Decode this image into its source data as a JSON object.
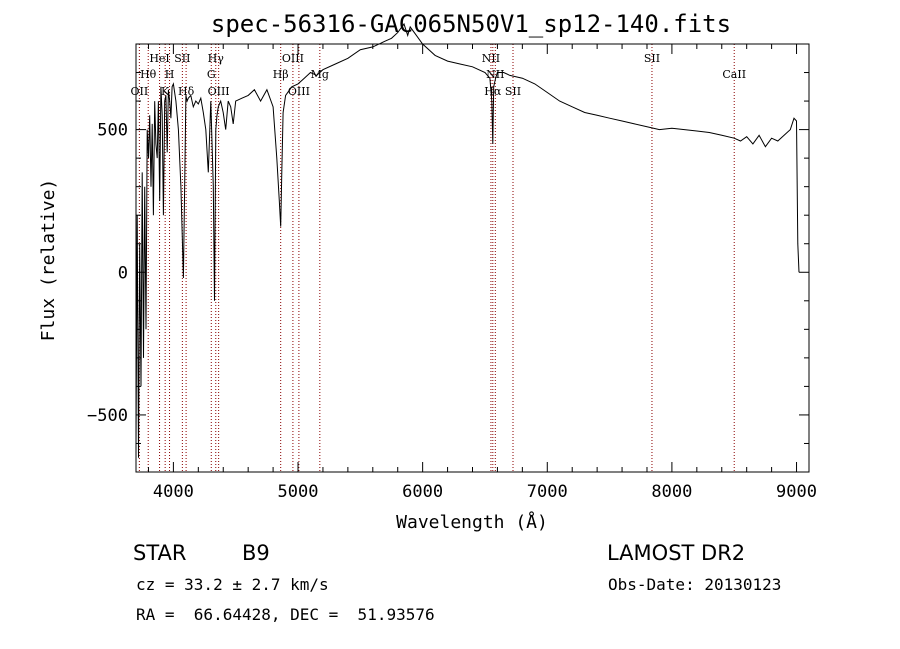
{
  "chart_data": {
    "type": "line",
    "title": "spec-56316-GAC065N50V1_sp12-140.fits",
    "xlabel": "Wavelength (Å)",
    "ylabel": "Flux (relative)",
    "xlim": [
      3700,
      9100
    ],
    "ylim": [
      -700,
      800
    ],
    "xticks": [
      4000,
      5000,
      6000,
      7000,
      8000,
      9000
    ],
    "yticks": [
      -500,
      0,
      500
    ],
    "grid": false,
    "line_color": "#000000",
    "marker_color": "#8b0000",
    "series": [
      {
        "x": [
          3700,
          3710,
          3720,
          3730,
          3740,
          3750,
          3760,
          3770,
          3780,
          3790,
          3800,
          3810,
          3820,
          3830,
          3840,
          3850,
          3860,
          3870,
          3880,
          3890,
          3900,
          3910,
          3920,
          3930,
          3940,
          3950,
          3960,
          3970,
          3980,
          3990,
          4000,
          4020,
          4040,
          4060,
          4080,
          4100,
          4110,
          4120,
          4140,
          4160,
          4180,
          4200,
          4220,
          4240,
          4260,
          4280,
          4300,
          4320,
          4330,
          4340,
          4350,
          4360,
          4380,
          4400,
          4420,
          4440,
          4460,
          4480,
          4500,
          4550,
          4600,
          4650,
          4700,
          4750,
          4800,
          4830,
          4850,
          4861,
          4870,
          4880,
          4900,
          4950,
          5000,
          5050,
          5100,
          5150,
          5200,
          5300,
          5400,
          5500,
          5600,
          5700,
          5750,
          5800,
          5850,
          5880,
          5900,
          5950,
          6000,
          6100,
          6200,
          6300,
          6400,
          6500,
          6540,
          6555,
          6563,
          6570,
          6585,
          6600,
          6650,
          6700,
          6800,
          6900,
          7000,
          7100,
          7200,
          7300,
          7400,
          7500,
          7600,
          7700,
          7800,
          7900,
          8000,
          8100,
          8200,
          8300,
          8400,
          8500,
          8550,
          8600,
          8650,
          8700,
          8750,
          8800,
          8850,
          8900,
          8950,
          8980,
          9000,
          9010,
          9020
        ],
        "y": [
          -600,
          200,
          -650,
          100,
          -400,
          350,
          -300,
          300,
          -200,
          500,
          400,
          550,
          300,
          520,
          200,
          600,
          450,
          400,
          600,
          250,
          650,
          550,
          200,
          600,
          620,
          420,
          640,
          600,
          540,
          650,
          660,
          600,
          500,
          300,
          -20,
          620,
          600,
          610,
          620,
          580,
          600,
          590,
          610,
          560,
          500,
          350,
          600,
          300,
          -100,
          500,
          550,
          580,
          600,
          560,
          500,
          600,
          580,
          520,
          600,
          610,
          620,
          640,
          600,
          640,
          580,
          400,
          250,
          160,
          350,
          560,
          620,
          650,
          660,
          680,
          700,
          690,
          710,
          730,
          750,
          780,
          790,
          810,
          820,
          840,
          870,
          830,
          860,
          830,
          800,
          760,
          740,
          730,
          720,
          700,
          680,
          600,
          450,
          650,
          680,
          700,
          700,
          690,
          680,
          660,
          630,
          600,
          580,
          560,
          550,
          540,
          530,
          520,
          510,
          500,
          505,
          500,
          495,
          490,
          480,
          470,
          460,
          475,
          450,
          480,
          440,
          470,
          460,
          480,
          500,
          540,
          530,
          100,
          0
        ]
      }
    ],
    "lines": [
      {
        "label": "OII",
        "x": 3727,
        "row": 3
      },
      {
        "label": "Hθ",
        "x": 3798,
        "row": 2
      },
      {
        "label": "HeI",
        "x": 3889,
        "row": 1
      },
      {
        "label": "K",
        "x": 3934,
        "row": 3
      },
      {
        "label": "H",
        "x": 3969,
        "row": 2
      },
      {
        "label": "SII",
        "x": 4072,
        "row": 1
      },
      {
        "label": "Hδ",
        "x": 4102,
        "row": 3
      },
      {
        "label": "Hγ",
        "x": 4340,
        "row": 1
      },
      {
        "label": "G",
        "x": 4304,
        "row": 2
      },
      {
        "label": "OIII",
        "x": 4363,
        "row": 3
      },
      {
        "label": "Hβ",
        "x": 4861,
        "row": 2
      },
      {
        "label": "OIII",
        "x": 4959,
        "row": 1
      },
      {
        "label": "OIII",
        "x": 5007,
        "row": 3
      },
      {
        "label": "Mg",
        "x": 5175,
        "row": 2
      },
      {
        "label": "NII",
        "x": 6548,
        "row": 1
      },
      {
        "label": "NII",
        "x": 6583,
        "row": 2
      },
      {
        "label": "Hα",
        "x": 6563,
        "row": 3
      },
      {
        "label": "SII",
        "x": 6725,
        "row": 3
      },
      {
        "label": "SII",
        "x": 7840,
        "row": 1
      },
      {
        "label": "CaII",
        "x": 8500,
        "row": 2
      }
    ]
  },
  "footer": {
    "class_label": "STAR",
    "subclass": "B9",
    "survey": "LAMOST DR2",
    "cz": "cz = 33.2 ± 2.7 km/s",
    "obs_date": "Obs-Date: 20130123",
    "coords": "RA =  66.64428, DEC =  51.93576"
  }
}
